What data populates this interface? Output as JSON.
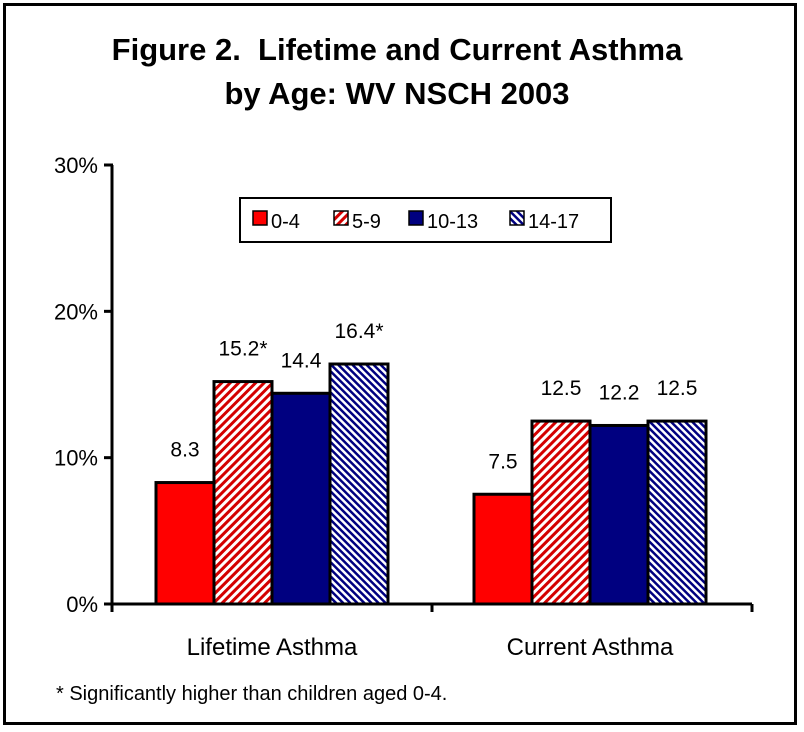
{
  "chart_data": {
    "type": "bar",
    "title_line1": "Figure 2.  Lifetime and Current Asthma",
    "title_line2": "by Age: WV NSCH 2003",
    "categories": [
      "Lifetime Asthma",
      "Current Asthma"
    ],
    "series": [
      {
        "name": "0-4",
        "values": [
          8.3,
          7.5
        ],
        "labels": [
          "8.3",
          "7.5"
        ],
        "color": "#ff0000",
        "pattern": "solid"
      },
      {
        "name": "5-9",
        "values": [
          15.2,
          12.5
        ],
        "labels": [
          "15.2*",
          "12.5"
        ],
        "color": "#d40000",
        "pattern": "diagonal-hatch"
      },
      {
        "name": "10-13",
        "values": [
          14.4,
          12.2
        ],
        "labels": [
          "14.4",
          "12.2"
        ],
        "color": "#000080",
        "pattern": "solid"
      },
      {
        "name": "14-17",
        "values": [
          16.4,
          12.5
        ],
        "labels": [
          "16.4*",
          "12.5"
        ],
        "color": "#000080",
        "pattern": "diagonal-hatch"
      }
    ],
    "yticks": [
      "0%",
      "10%",
      "20%",
      "30%"
    ],
    "ylim": [
      0,
      30
    ],
    "legend_position": "top-center",
    "grid": false
  },
  "footnote": "* Significantly higher than children aged 0-4."
}
